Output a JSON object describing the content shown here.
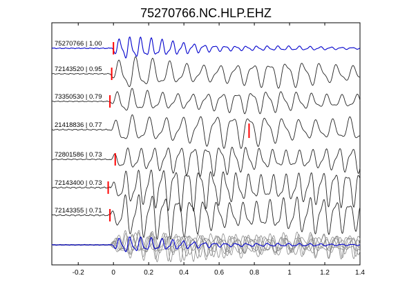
{
  "chart_data": {
    "type": "line",
    "title": "75270766.NC.HLP.EHZ",
    "xlabel": "",
    "ylabel": "",
    "xlim": [
      -0.35,
      1.4
    ],
    "xticks": [
      -0.2,
      0,
      0.2,
      0.4,
      0.6,
      0.8,
      1,
      1.2,
      1.4
    ],
    "xtick_labels": [
      "-0.2",
      "0",
      "0.2",
      "0.4",
      "0.6",
      "0.8",
      "1",
      "1.2",
      "1.4"
    ],
    "grid": false,
    "colors": {
      "reference": "#0000cc",
      "trace": "#222222",
      "pick": "#ff0000",
      "stack_other": "#888888"
    },
    "series": [
      {
        "label": "75270766 | 1.00",
        "pick": 0.0,
        "extra_pick": null,
        "ref": true,
        "amp": 0.55,
        "period": 0.06
      },
      {
        "label": "72143520 | 0.95",
        "pick": -0.01,
        "extra_pick": null,
        "ref": false,
        "amp": 0.65,
        "period": 0.095
      },
      {
        "label": "73350530 | 0.79",
        "pick": -0.02,
        "extra_pick": null,
        "ref": false,
        "amp": 0.55,
        "period": 0.085
      },
      {
        "label": "21418836 | 0.77",
        "pick": null,
        "extra_pick": 0.77,
        "ref": false,
        "amp": 0.8,
        "period": 0.095
      },
      {
        "label": "72801586 | 0.73",
        "pick": 0.01,
        "extra_pick": null,
        "ref": false,
        "amp": 0.7,
        "period": 0.075
      },
      {
        "label": "72143400 | 0.73",
        "pick": -0.03,
        "extra_pick": null,
        "ref": false,
        "amp": 0.95,
        "period": 0.07
      },
      {
        "label": "72143355 | 0.71",
        "pick": -0.02,
        "extra_pick": null,
        "ref": false,
        "amp": 0.95,
        "period": 0.075
      }
    ]
  }
}
